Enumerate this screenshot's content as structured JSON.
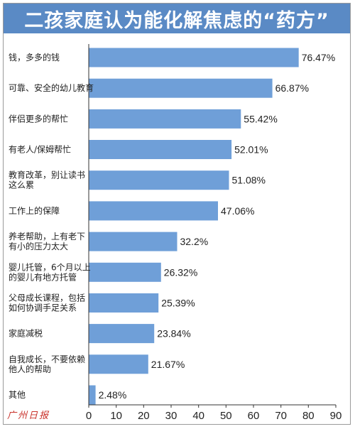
{
  "title": "二孩家庭认为能化解焦虑的“药方”",
  "watermark": "广州日报",
  "colors": {
    "header": "#5a8ac5",
    "bar": "#6f9fd8",
    "axis": "#333333"
  },
  "chart_data": {
    "type": "bar",
    "orientation": "horizontal",
    "categories": [
      [
        "钱，多多的钱"
      ],
      [
        "可靠、安全的幼儿教育"
      ],
      [
        "伴侣更多的帮忙"
      ],
      [
        "有老人/保姆帮忙"
      ],
      [
        "教育改革，别让读书",
        "这么累"
      ],
      [
        "工作上的保障"
      ],
      [
        "养老帮助，上有老下",
        "有小的压力太大"
      ],
      [
        "婴儿托管，6个月以上",
        "的婴儿有地方托管"
      ],
      [
        "父母成长课程，包括",
        "如何协调手足关系"
      ],
      [
        "家庭减税"
      ],
      [
        "自我成长，不要依赖",
        "他人的帮助"
      ],
      [
        "其他"
      ]
    ],
    "values": [
      76.47,
      66.87,
      55.42,
      52.01,
      51.08,
      47.06,
      32.2,
      26.32,
      25.39,
      23.84,
      21.67,
      2.48
    ],
    "value_labels": [
      "76.47%",
      "66.87%",
      "55.42%",
      "52.01%",
      "51.08%",
      "47.06%",
      "32.2%",
      "26.32%",
      "25.39%",
      "23.84%",
      "21.67%",
      "2.48%"
    ],
    "xlim": [
      0,
      90
    ],
    "xticks": [
      0,
      10,
      20,
      30,
      40,
      50,
      60,
      70,
      80,
      90
    ],
    "grid": false,
    "legend": "none"
  }
}
